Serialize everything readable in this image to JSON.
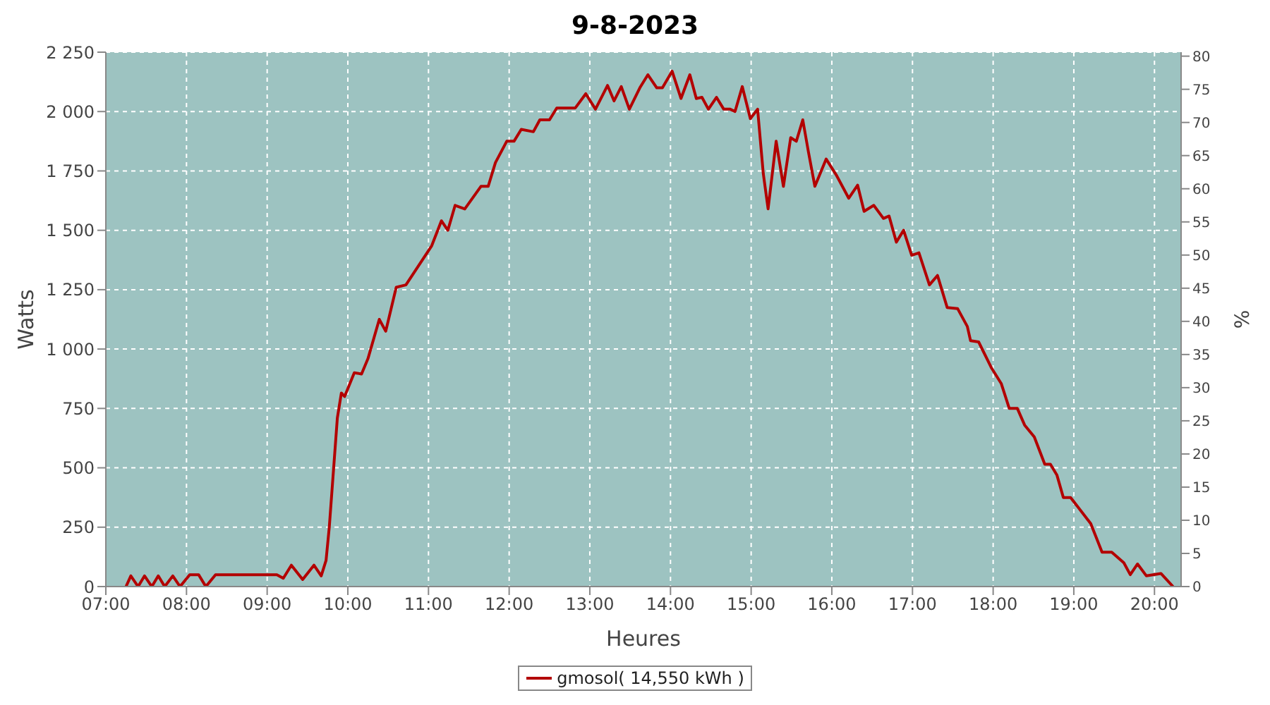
{
  "chart_data": {
    "type": "line",
    "title": "9-8-2023",
    "xlabel": "Heures",
    "ylabel": "Watts",
    "y2label": "%",
    "x": [
      7.25,
      7.31,
      7.4,
      7.48,
      7.57,
      7.65,
      7.73,
      7.83,
      7.92,
      8.04,
      8.15,
      8.24,
      8.36,
      9.12,
      9.2,
      9.3,
      9.44,
      9.58,
      9.67,
      9.73,
      9.77,
      9.82,
      9.87,
      9.92,
      9.96,
      10.08,
      10.17,
      10.25,
      10.39,
      10.47,
      10.6,
      10.72,
      11.04,
      11.16,
      11.24,
      11.33,
      11.45,
      11.65,
      11.74,
      11.83,
      11.97,
      12.06,
      12.15,
      12.3,
      12.38,
      12.5,
      12.59,
      12.82,
      12.95,
      13.07,
      13.22,
      13.3,
      13.39,
      13.49,
      13.62,
      13.72,
      13.83,
      13.9,
      14.02,
      14.13,
      14.24,
      14.32,
      14.39,
      14.47,
      14.57,
      14.66,
      14.74,
      14.8,
      14.89,
      14.99,
      15.08,
      15.15,
      15.21,
      15.31,
      15.4,
      15.49,
      15.56,
      15.64,
      15.71,
      15.79,
      15.93,
      16.06,
      16.21,
      16.32,
      16.4,
      16.52,
      16.64,
      16.71,
      16.8,
      16.89,
      16.99,
      17.08,
      17.21,
      17.31,
      17.43,
      17.56,
      17.68,
      17.72,
      17.82,
      17.98,
      18.1,
      18.2,
      18.3,
      18.39,
      18.51,
      18.64,
      18.71,
      18.79,
      18.87,
      18.96,
      19.21,
      19.35,
      19.47,
      19.62,
      19.7,
      19.79,
      19.9,
      20.08,
      20.23
    ],
    "series": [
      {
        "name": "gmosol( 14,550 kWh )",
        "color": "#b30000",
        "values": [
          0,
          45,
          0,
          45,
          0,
          45,
          0,
          45,
          0,
          50,
          50,
          0,
          50,
          50,
          35,
          90,
          30,
          90,
          45,
          110,
          250,
          480,
          710,
          815,
          800,
          900,
          895,
          960,
          1125,
          1075,
          1260,
          1270,
          1435,
          1540,
          1500,
          1605,
          1590,
          1685,
          1685,
          1785,
          1875,
          1875,
          1925,
          1915,
          1965,
          1965,
          2015,
          2015,
          2075,
          2010,
          2110,
          2045,
          2105,
          2010,
          2100,
          2155,
          2100,
          2100,
          2170,
          2055,
          2155,
          2055,
          2060,
          2010,
          2060,
          2010,
          2010,
          2000,
          2105,
          1970,
          2010,
          1740,
          1590,
          1875,
          1685,
          1890,
          1875,
          1965,
          1830,
          1685,
          1800,
          1730,
          1635,
          1690,
          1580,
          1605,
          1550,
          1560,
          1450,
          1500,
          1395,
          1405,
          1270,
          1310,
          1175,
          1170,
          1095,
          1035,
          1030,
          920,
          855,
          750,
          750,
          680,
          630,
          515,
          515,
          470,
          375,
          375,
          265,
          145,
          145,
          100,
          50,
          95,
          45,
          55,
          0
        ]
      }
    ],
    "xlim": [
      7,
      20.33
    ],
    "xticks": [
      {
        "value": 7,
        "label": "07:00"
      },
      {
        "value": 8,
        "label": "08:00"
      },
      {
        "value": 9,
        "label": "09:00"
      },
      {
        "value": 10,
        "label": "10:00"
      },
      {
        "value": 11,
        "label": "11:00"
      },
      {
        "value": 12,
        "label": "12:00"
      },
      {
        "value": 13,
        "label": "13:00"
      },
      {
        "value": 14,
        "label": "14:00"
      },
      {
        "value": 15,
        "label": "15:00"
      },
      {
        "value": 16,
        "label": "16:00"
      },
      {
        "value": 17,
        "label": "17:00"
      },
      {
        "value": 18,
        "label": "18:00"
      },
      {
        "value": 19,
        "label": "19:00"
      },
      {
        "value": 20,
        "label": "20:00"
      }
    ],
    "ylim": [
      0,
      2250
    ],
    "yticks": [
      0,
      250,
      500,
      750,
      {
        "value": 1000,
        "label": "1 000"
      },
      {
        "value": 1250,
        "label": "1 250"
      },
      {
        "value": 1500,
        "label": "1 500"
      },
      {
        "value": 1750,
        "label": "1 750"
      },
      {
        "value": 2000,
        "label": "2 000"
      },
      {
        "value": 2250,
        "label": "2 250"
      }
    ],
    "y2lim": [
      0,
      80.6
    ],
    "y2ticks": [
      0,
      5,
      10,
      15,
      20,
      25,
      30,
      35,
      40,
      45,
      50,
      55,
      60,
      65,
      70,
      75,
      80
    ],
    "grid": true,
    "legend": "bottom",
    "marker": "none",
    "line_style": "solid"
  }
}
